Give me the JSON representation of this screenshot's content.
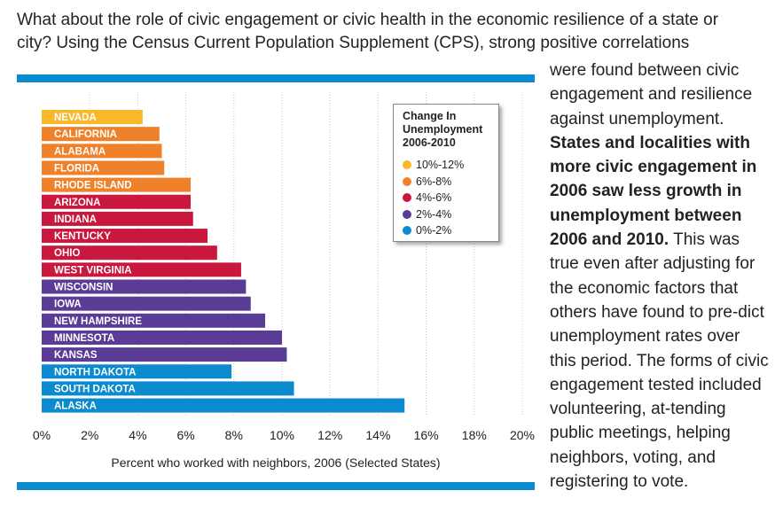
{
  "intro_text": "What about the role of civic engagement or civic health in the economic resilience of a state or city? Using the Census Current Population Supplement (CPS), strong positive correlations",
  "side_text": {
    "p1": "were found between civic engagement and resilience against unemployment. ",
    "p2_bold": "States and localities with more civic engagement in 2006 saw less growth in unemployment between 2006 and 2010.",
    "p3": " This was true even after adjusting for the economic factors that others have found to pre-dict unemployment rates over this period. The forms of civic engagement tested included volunteering, at-tending public meetings, helping neighbors, voting, and registering to vote."
  },
  "colors": {
    "rule": "#0a8bd0",
    "grid": "#c8c8c8"
  },
  "legend": {
    "title": "Change In Unemployment 2006-2010",
    "items": [
      {
        "label": "10%-12%",
        "color": "#f7b829"
      },
      {
        "label": "6%-8%",
        "color": "#f0812b"
      },
      {
        "label": "4%-6%",
        "color": "#c9173e"
      },
      {
        "label": "2%-4%",
        "color": "#5a3c96"
      },
      {
        "label": "0%-2%",
        "color": "#0a8bd0"
      }
    ]
  },
  "chart_data": {
    "type": "bar",
    "orientation": "horizontal",
    "title": "",
    "xlabel": "Percent who worked with neighbors, 2006 (Selected States)",
    "ylabel": "",
    "xlim": [
      0,
      20
    ],
    "ticks": [
      0,
      2,
      4,
      6,
      8,
      10,
      12,
      14,
      16,
      18,
      20
    ],
    "tick_labels": [
      "0%",
      "2%",
      "4%",
      "6%",
      "8%",
      "10%",
      "12%",
      "14%",
      "16%",
      "18%",
      "20%"
    ],
    "bars": [
      {
        "label": "NEVADA",
        "value": 4.2,
        "group": "10%-12%",
        "color": "#f7b829"
      },
      {
        "label": "CALIFORNIA",
        "value": 4.9,
        "group": "6%-8%",
        "color": "#f0812b"
      },
      {
        "label": "ALABAMA",
        "value": 5.0,
        "group": "6%-8%",
        "color": "#f0812b"
      },
      {
        "label": "FLORIDA",
        "value": 5.1,
        "group": "6%-8%",
        "color": "#f0812b"
      },
      {
        "label": "RHODE ISLAND",
        "value": 6.2,
        "group": "6%-8%",
        "color": "#f0812b"
      },
      {
        "label": "ARIZONA",
        "value": 6.2,
        "group": "4%-6%",
        "color": "#c9173e"
      },
      {
        "label": "INDIANA",
        "value": 6.3,
        "group": "4%-6%",
        "color": "#c9173e"
      },
      {
        "label": "KENTUCKY",
        "value": 6.9,
        "group": "4%-6%",
        "color": "#c9173e"
      },
      {
        "label": "OHIO",
        "value": 7.3,
        "group": "4%-6%",
        "color": "#c9173e"
      },
      {
        "label": "WEST VIRGINIA",
        "value": 8.3,
        "group": "4%-6%",
        "color": "#c9173e"
      },
      {
        "label": "WISCONSIN",
        "value": 8.5,
        "group": "2%-4%",
        "color": "#5a3c96"
      },
      {
        "label": "IOWA",
        "value": 8.7,
        "group": "2%-4%",
        "color": "#5a3c96"
      },
      {
        "label": "NEW HAMPSHIRE",
        "value": 9.3,
        "group": "2%-4%",
        "color": "#5a3c96"
      },
      {
        "label": "MINNESOTA",
        "value": 10.0,
        "group": "2%-4%",
        "color": "#5a3c96"
      },
      {
        "label": "KANSAS",
        "value": 10.2,
        "group": "2%-4%",
        "color": "#5a3c96"
      },
      {
        "label": "NORTH DAKOTA",
        "value": 7.9,
        "group": "0%-2%",
        "color": "#0a8bd0"
      },
      {
        "label": "SOUTH DAKOTA",
        "value": 10.5,
        "group": "0%-2%",
        "color": "#0a8bd0"
      },
      {
        "label": "ALASKA",
        "value": 15.1,
        "group": "0%-2%",
        "color": "#0a8bd0"
      }
    ]
  }
}
